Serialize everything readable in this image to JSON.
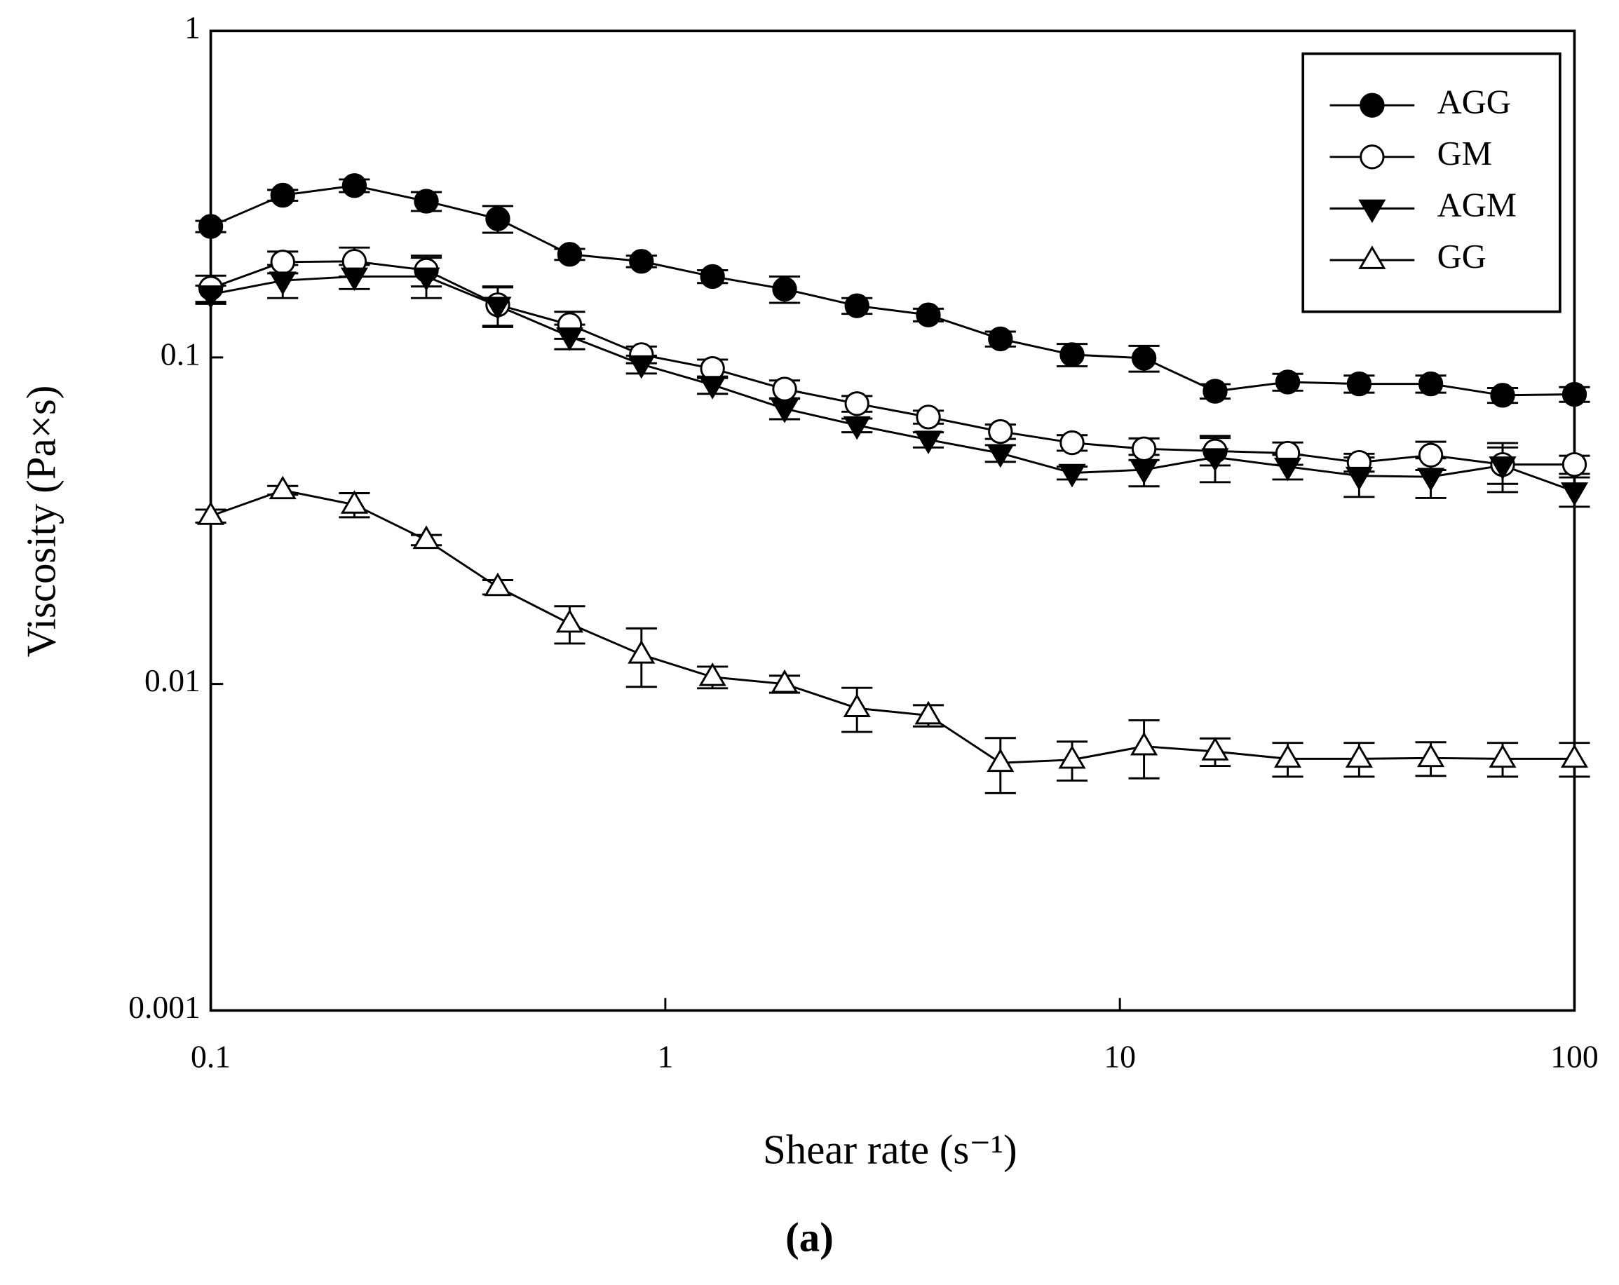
{
  "chart_data": {
    "type": "line",
    "xlabel": "Shear rate (s⁻¹)",
    "ylabel": "Viscosity (Pa×s)",
    "caption": "(a)",
    "log_x": true,
    "log_y": true,
    "xlim": [
      0.1,
      100
    ],
    "ylim": [
      0.001,
      1
    ],
    "xticks": [
      0.1,
      1,
      10,
      100
    ],
    "yticks": [
      0.001,
      0.01,
      0.1,
      1
    ],
    "legend": "upper right",
    "x": [
      0.1,
      0.144,
      0.207,
      0.298,
      0.428,
      0.616,
      0.886,
      1.27,
      1.83,
      2.64,
      3.79,
      5.46,
      7.85,
      11.3,
      16.2,
      23.4,
      33.6,
      48.3,
      69.5,
      100
    ],
    "series": [
      {
        "name": "AGG",
        "color": "#000000",
        "marker": "circle",
        "marker_fill": "#000000",
        "values": [
          0.252,
          0.314,
          0.336,
          0.301,
          0.266,
          0.207,
          0.197,
          0.177,
          0.162,
          0.144,
          0.135,
          0.114,
          0.102,
          0.0995,
          0.0788,
          0.0841,
          0.083,
          0.083,
          0.0766,
          0.0771
        ],
        "errors": [
          0.01,
          0.012,
          0.015,
          0.02,
          0.025,
          0.008,
          0.008,
          0.008,
          0.015,
          0.008,
          0.006,
          0.006,
          0.008,
          0.009,
          0.004,
          0.005,
          0.005,
          0.005,
          0.004,
          0.004
        ]
      },
      {
        "name": "GM",
        "color": "#000000",
        "marker": "circle",
        "marker_fill": "#ffffff",
        "values": [
          0.163,
          0.196,
          0.197,
          0.185,
          0.145,
          0.126,
          0.102,
          0.0925,
          0.08,
          0.0722,
          0.0657,
          0.0593,
          0.0548,
          0.0525,
          0.0517,
          0.0509,
          0.0477,
          0.0502,
          0.047,
          0.047
        ],
        "errors": [
          0.015,
          0.015,
          0.02,
          0.02,
          0.02,
          0.012,
          0.006,
          0.006,
          0.005,
          0.004,
          0.003,
          0.003,
          0.003,
          0.004,
          0.005,
          0.004,
          0.003,
          0.005,
          0.006,
          0.003
        ]
      },
      {
        "name": "AGM",
        "color": "#000000",
        "marker": "triangle-down",
        "marker_fill": "#000000",
        "values": [
          0.156,
          0.172,
          0.177,
          0.177,
          0.144,
          0.116,
          0.0953,
          0.0824,
          0.0697,
          0.062,
          0.056,
          0.0509,
          0.0443,
          0.0453,
          0.0495,
          0.0463,
          0.0434,
          0.0431,
          0.0467,
          0.0389
        ],
        "errors": [
          0.01,
          0.02,
          0.015,
          0.025,
          0.02,
          0.01,
          0.006,
          0.005,
          0.005,
          0.003,
          0.003,
          0.003,
          0.002,
          0.005,
          0.008,
          0.004,
          0.006,
          0.006,
          0.008,
          0.004
        ]
      },
      {
        "name": "GG",
        "color": "#000000",
        "marker": "triangle-up",
        "marker_fill": "#ffffff",
        "values": [
          0.0327,
          0.0392,
          0.0354,
          0.0276,
          0.0198,
          0.0153,
          0.0123,
          0.0105,
          0.01,
          0.00843,
          0.00801,
          0.00573,
          0.00586,
          0.00644,
          0.00621,
          0.0059,
          0.0059,
          0.00593,
          0.0059,
          0.0059
        ],
        "errors": [
          0.0015,
          0.0012,
          0.003,
          0.001,
          0.001,
          0.002,
          0.0025,
          0.0008,
          0.0006,
          0.0013,
          0.0006,
          0.0011,
          0.0008,
          0.0013,
          0.0006,
          0.0007,
          0.0007,
          0.0007,
          0.0007,
          0.0007
        ]
      }
    ]
  }
}
